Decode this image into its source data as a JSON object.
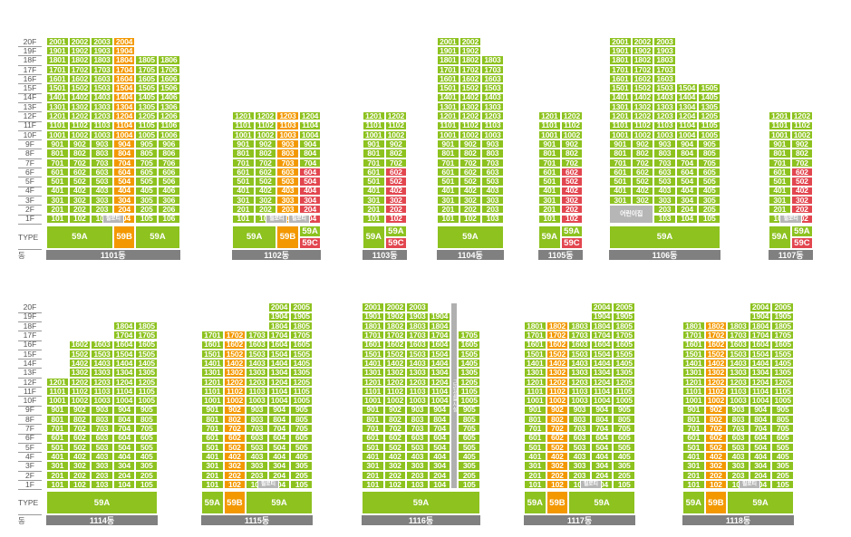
{
  "floor_labels": [
    "20F",
    "19F",
    "18F",
    "17F",
    "16F",
    "15F",
    "14F",
    "13F",
    "12F",
    "11F",
    "10F",
    "9F",
    "8F",
    "7F",
    "6F",
    "5F",
    "4F",
    "3F",
    "2F",
    "1F"
  ],
  "row_labels": {
    "type": "TYPE",
    "building": "동"
  },
  "special": {
    "pilotis": "필로티",
    "daycare": "어린이집",
    "core": "근린생활시설"
  },
  "colors": {
    "green": "#8dc21f",
    "orange": "#f39800",
    "red": "#e2464f",
    "gray": "#808080"
  },
  "top": [
    {
      "name": "1101동",
      "cols": [
        {
          "unit": 1,
          "top": 20,
          "bottom": 1
        },
        {
          "unit": 2,
          "top": 20,
          "bottom": 1
        },
        {
          "unit": 3,
          "top": 20,
          "bottom": 1
        },
        {
          "unit": 4,
          "top": 20,
          "bottom": 1,
          "color": "o",
          "pilotis": 1
        },
        {
          "unit": 5,
          "top": 18,
          "bottom": 1
        },
        {
          "unit": 6,
          "top": 18,
          "bottom": 1
        }
      ],
      "types": [
        {
          "label": "59A",
          "span": [
            0,
            3
          ],
          "color": "g"
        },
        {
          "label": "59B",
          "span": [
            3,
            4
          ],
          "color": "o"
        },
        {
          "label": "59A",
          "span": [
            4,
            6
          ],
          "color": "g"
        }
      ],
      "pilotis_at": [
        2
      ]
    },
    {
      "name": "1102동",
      "cols": [
        {
          "unit": 1,
          "top": 12,
          "bottom": 1
        },
        {
          "unit": 2,
          "top": 12,
          "bottom": 1
        },
        {
          "unit": 3,
          "top": 12,
          "bottom": 1,
          "color": "o"
        },
        {
          "unit": 4,
          "top": 12,
          "bottom": 1,
          "red_below": 6
        }
      ],
      "types": [
        {
          "label": "59A",
          "span": [
            0,
            2
          ],
          "color": "g"
        },
        {
          "label": "59B",
          "span": [
            2,
            3
          ],
          "color": "o"
        },
        {
          "label": "59A",
          "span": [
            3,
            4
          ],
          "color": "g",
          "split": "59C"
        }
      ],
      "pilotis_at": [
        1,
        2
      ]
    },
    {
      "name": "1103동",
      "cols": [
        {
          "unit": 1,
          "top": 12,
          "bottom": 1
        },
        {
          "unit": 2,
          "top": 12,
          "bottom": 1,
          "red_below": 6
        }
      ],
      "types": [
        {
          "label": "59A",
          "span": [
            0,
            1
          ],
          "color": "g"
        },
        {
          "label": "59A",
          "span": [
            1,
            2
          ],
          "color": "g",
          "split": "59C"
        }
      ]
    },
    {
      "name": "1104동",
      "cols": [
        {
          "unit": 1,
          "top": 20,
          "bottom": 1
        },
        {
          "unit": 2,
          "top": 20,
          "bottom": 1
        },
        {
          "unit": 3,
          "top": 18,
          "bottom": 1
        }
      ],
      "types": [
        {
          "label": "59A",
          "span": [
            0,
            3
          ],
          "color": "g"
        }
      ]
    },
    {
      "name": "1105동",
      "cols": [
        {
          "unit": 1,
          "top": 12,
          "bottom": 1
        },
        {
          "unit": 2,
          "top": 12,
          "bottom": 1,
          "red_below": 6
        }
      ],
      "types": [
        {
          "label": "59A",
          "span": [
            0,
            1
          ],
          "color": "g"
        },
        {
          "label": "59A",
          "span": [
            1,
            2
          ],
          "color": "g",
          "split": "59C"
        }
      ]
    },
    {
      "name": "1106동",
      "cols": [
        {
          "unit": 1,
          "top": 20,
          "bottom": 3
        },
        {
          "unit": 2,
          "top": 20,
          "bottom": 3
        },
        {
          "unit": 3,
          "top": 20,
          "bottom": 1
        },
        {
          "unit": 4,
          "top": 15,
          "bottom": 1
        },
        {
          "unit": 5,
          "top": 15,
          "bottom": 1
        }
      ],
      "types": [
        {
          "label": "59A",
          "span": [
            0,
            5
          ],
          "color": "g"
        }
      ],
      "daycare": [
        0,
        2
      ]
    },
    {
      "name": "1107동",
      "cols": [
        {
          "unit": 1,
          "top": 12,
          "bottom": 1
        },
        {
          "unit": 2,
          "top": 12,
          "bottom": 1,
          "red_below": 6
        }
      ],
      "types": [
        {
          "label": "59A",
          "span": [
            0,
            1
          ],
          "color": "g"
        },
        {
          "label": "59A",
          "span": [
            1,
            2
          ],
          "color": "g",
          "split": "59C"
        }
      ],
      "pilotis_at": [
        0
      ]
    }
  ],
  "bottom": [
    {
      "name": "1114동",
      "cols": [
        {
          "unit": 1,
          "top": 12,
          "bottom": 1
        },
        {
          "unit": 2,
          "top": 16,
          "bottom": 1
        },
        {
          "unit": 3,
          "top": 16,
          "bottom": 1
        },
        {
          "unit": 4,
          "top": 18,
          "bottom": 1
        },
        {
          "unit": 5,
          "top": 18,
          "bottom": 1
        }
      ],
      "types": [
        {
          "label": "59A",
          "span": [
            0,
            5
          ],
          "color": "g"
        }
      ]
    },
    {
      "name": "1115동",
      "cols": [
        {
          "unit": 1,
          "top": 17,
          "bottom": 1
        },
        {
          "unit": 2,
          "top": 17,
          "bottom": 1,
          "color": "o"
        },
        {
          "unit": 3,
          "top": 17,
          "bottom": 1
        },
        {
          "unit": 4,
          "top": 20,
          "bottom": 1
        },
        {
          "unit": 5,
          "top": 20,
          "bottom": 1
        }
      ],
      "types": [
        {
          "label": "59A",
          "span": [
            0,
            1
          ],
          "color": "g"
        },
        {
          "label": "59B",
          "span": [
            1,
            2
          ],
          "color": "o"
        },
        {
          "label": "59A",
          "span": [
            2,
            5
          ],
          "color": "g"
        }
      ],
      "pilotis_at": [
        2
      ]
    },
    {
      "name": "1116동",
      "cols": [
        {
          "unit": 1,
          "top": 20,
          "bottom": 1
        },
        {
          "unit": 2,
          "top": 20,
          "bottom": 1
        },
        {
          "unit": 3,
          "top": 20,
          "bottom": 1
        },
        {
          "unit": 4,
          "top": 19,
          "bottom": 1
        },
        {
          "unit": 5,
          "top": 17,
          "bottom": 1
        }
      ],
      "types": [
        {
          "label": "59A",
          "span": [
            0,
            5
          ],
          "color": "g"
        }
      ],
      "core_after": 3
    },
    {
      "name": "1117동",
      "cols": [
        {
          "unit": 1,
          "top": 18,
          "bottom": 1
        },
        {
          "unit": 2,
          "top": 18,
          "bottom": 1,
          "color": "o"
        },
        {
          "unit": 3,
          "top": 18,
          "bottom": 1
        },
        {
          "unit": 4,
          "top": 20,
          "bottom": 1
        },
        {
          "unit": 5,
          "top": 20,
          "bottom": 1
        }
      ],
      "types": [
        {
          "label": "59A",
          "span": [
            0,
            1
          ],
          "color": "g"
        },
        {
          "label": "59B",
          "span": [
            1,
            2
          ],
          "color": "o"
        },
        {
          "label": "59A",
          "span": [
            2,
            5
          ],
          "color": "g"
        }
      ],
      "pilotis_at": [
        2
      ]
    },
    {
      "name": "1118동",
      "cols": [
        {
          "unit": 1,
          "top": 18,
          "bottom": 1
        },
        {
          "unit": 2,
          "top": 18,
          "bottom": 1,
          "color": "o"
        },
        {
          "unit": 3,
          "top": 18,
          "bottom": 1
        },
        {
          "unit": 4,
          "top": 20,
          "bottom": 1
        },
        {
          "unit": 5,
          "top": 20,
          "bottom": 1
        }
      ],
      "types": [
        {
          "label": "59A",
          "span": [
            0,
            1
          ],
          "color": "g"
        },
        {
          "label": "59B",
          "span": [
            1,
            2
          ],
          "color": "o"
        },
        {
          "label": "59A",
          "span": [
            2,
            5
          ],
          "color": "g"
        }
      ],
      "pilotis_at": [
        2
      ]
    }
  ]
}
